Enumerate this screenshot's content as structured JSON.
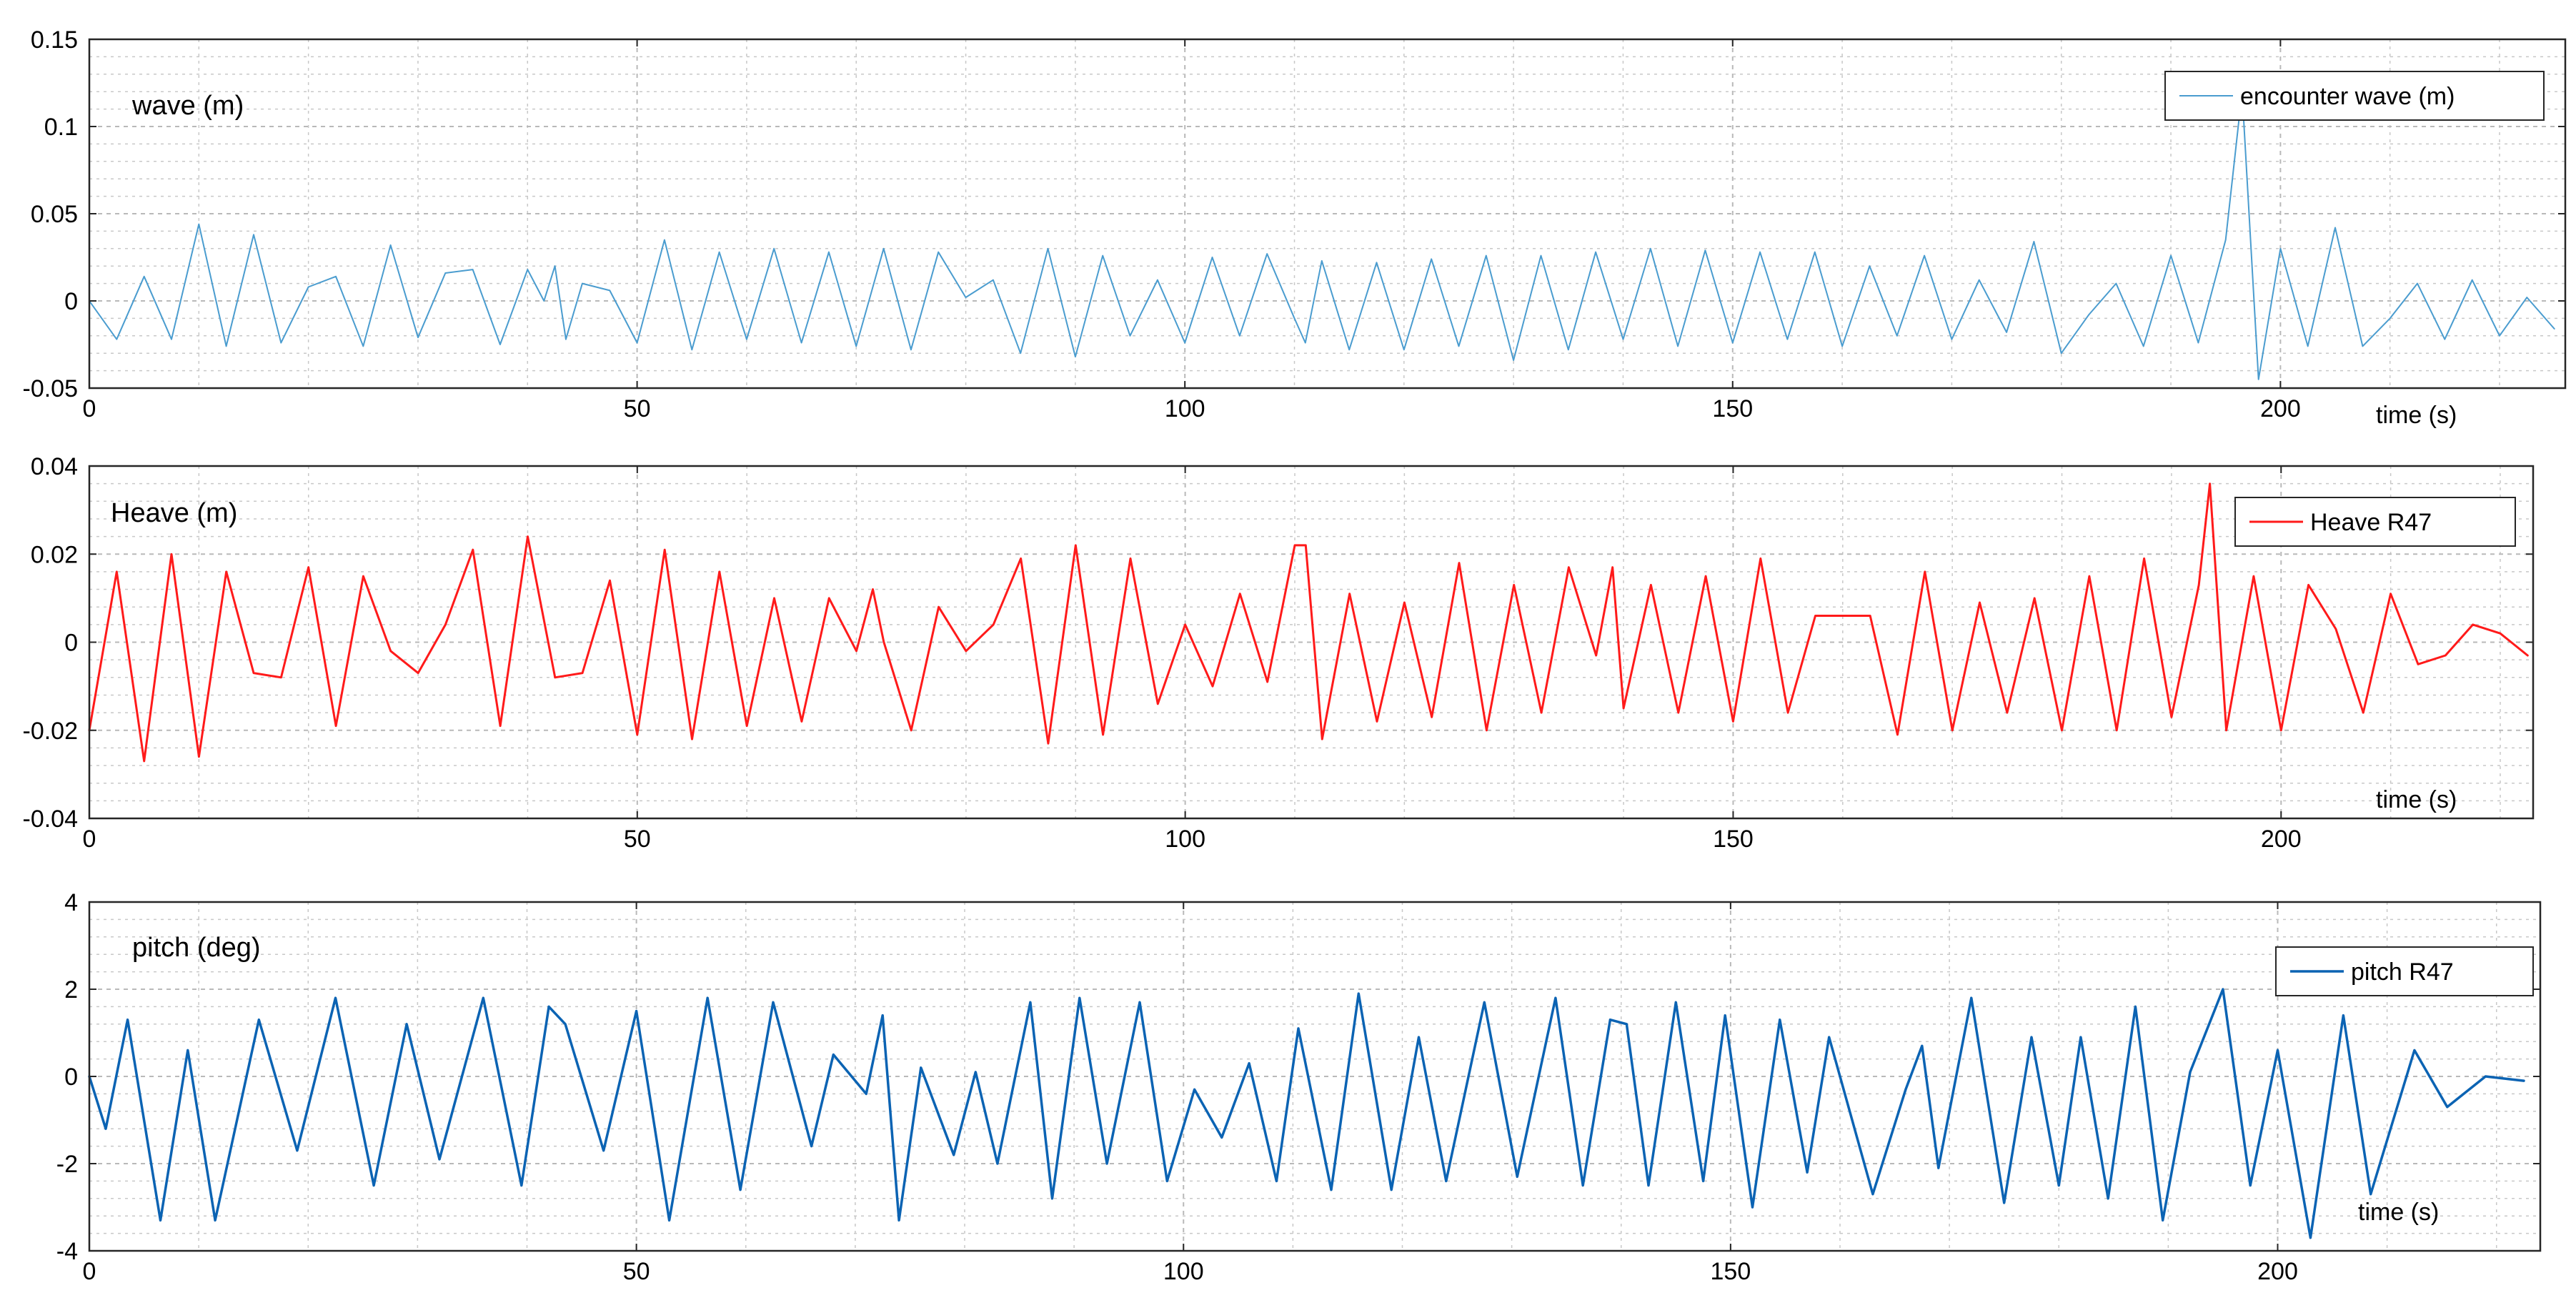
{
  "chart_data": [
    {
      "type": "line",
      "title": "wave (m)",
      "xlabel": "time (s)",
      "ylabel": "",
      "xlim": [
        0,
        226
      ],
      "ylim": [
        -0.05,
        0.15
      ],
      "xticks": [
        0,
        50,
        100,
        150,
        200
      ],
      "xtick_labels": [
        "0",
        "50",
        "100",
        "150",
        "200"
      ],
      "yticks": [
        -0.05,
        0,
        0.05,
        0.1,
        0.15
      ],
      "ytick_labels": [
        "-0.05",
        "0",
        "0.05",
        "0.1",
        "0.15"
      ],
      "grid": true,
      "minor_grid": true,
      "legend_position": "top-right",
      "series": [
        {
          "name": "encounter wave (m)",
          "color": "#4a9ccf",
          "line_width": 2,
          "x": [
            0,
            2.5,
            5,
            7.5,
            10,
            12.5,
            15,
            17.5,
            20,
            22.5,
            25,
            27.5,
            30,
            32.5,
            35,
            37.5,
            40,
            41.5,
            42.5,
            43.5,
            45,
            47.5,
            50,
            52.5,
            55,
            57.5,
            60,
            62.5,
            65,
            67.5,
            70,
            72.5,
            75,
            77.5,
            80,
            82.5,
            85,
            87.5,
            90,
            92.5,
            95,
            97.5,
            100,
            102.5,
            105,
            107.5,
            110,
            111,
            112.5,
            115,
            117.5,
            120,
            122.5,
            125,
            127.5,
            130,
            132.5,
            135,
            137.5,
            140,
            142.5,
            145,
            147.5,
            150,
            152.5,
            155,
            157.5,
            160,
            162.5,
            165,
            167.5,
            170,
            172.5,
            175,
            177.5,
            180,
            182.5,
            185,
            187.5,
            190,
            192.5,
            195,
            196.5,
            198,
            200,
            202.5,
            205,
            207.5,
            210,
            212.5,
            215,
            217.5,
            220,
            222.5,
            225
          ],
          "y": [
            0.0,
            -0.022,
            0.014,
            -0.022,
            0.044,
            -0.026,
            0.038,
            -0.024,
            0.008,
            0.014,
            -0.026,
            0.032,
            -0.021,
            0.016,
            0.018,
            -0.025,
            0.018,
            0.0,
            0.02,
            -0.022,
            0.01,
            0.006,
            -0.024,
            0.035,
            -0.028,
            0.028,
            -0.022,
            0.03,
            -0.024,
            0.028,
            -0.026,
            0.03,
            -0.028,
            0.028,
            0.002,
            0.012,
            -0.03,
            0.03,
            -0.032,
            0.026,
            -0.02,
            0.012,
            -0.024,
            0.025,
            -0.02,
            0.027,
            -0.01,
            -0.024,
            0.023,
            -0.028,
            0.022,
            -0.028,
            0.024,
            -0.026,
            0.026,
            -0.034,
            0.026,
            -0.028,
            0.028,
            -0.022,
            0.03,
            -0.026,
            0.029,
            -0.024,
            0.028,
            -0.022,
            0.028,
            -0.026,
            0.02,
            -0.02,
            0.026,
            -0.022,
            0.012,
            -0.018,
            0.034,
            -0.03,
            -0.008,
            0.01,
            -0.026,
            0.026,
            -0.024,
            0.035,
            0.12,
            -0.045,
            0.03,
            -0.026,
            0.042,
            -0.026,
            -0.01,
            0.01,
            -0.022,
            0.012,
            -0.02,
            0.002,
            -0.016
          ]
        }
      ]
    },
    {
      "type": "line",
      "title": "Heave (m)",
      "xlabel": "time (s)",
      "ylabel": "",
      "xlim": [
        0,
        223
      ],
      "ylim": [
        -0.04,
        0.04
      ],
      "xticks": [
        0,
        50,
        100,
        150,
        200
      ],
      "xtick_labels": [
        "0",
        "50",
        "100",
        "150",
        "200"
      ],
      "yticks": [
        -0.04,
        -0.02,
        0,
        0.02,
        0.04
      ],
      "ytick_labels": [
        "-0.04",
        "-0.02",
        "0",
        "0.02",
        "0.04"
      ],
      "grid": true,
      "minor_grid": true,
      "legend_position": "top-right",
      "series": [
        {
          "name": "Heave R47",
          "color": "#ff1a1a",
          "line_width": 3,
          "x": [
            0,
            2.5,
            5,
            7.5,
            10,
            12.5,
            15,
            17.5,
            20,
            22.5,
            25,
            27.5,
            30,
            32.5,
            35,
            37.5,
            40,
            42.5,
            45,
            47.5,
            50,
            52.5,
            55,
            57.5,
            60,
            62.5,
            65,
            67.5,
            70,
            71.5,
            72.5,
            75,
            77.5,
            80,
            82.5,
            85,
            87.5,
            90,
            92.5,
            95,
            97.5,
            100,
            102.5,
            105,
            107.5,
            110,
            111,
            112.5,
            115,
            117.5,
            120,
            122.5,
            125,
            127.5,
            130,
            132.5,
            135,
            137.5,
            139,
            140,
            142.5,
            145,
            147.5,
            150,
            152.5,
            155,
            157.5,
            160,
            162.5,
            165,
            167.5,
            170,
            172.5,
            175,
            177.5,
            180,
            182.5,
            185,
            187.5,
            190,
            192.5,
            193.5,
            195,
            197.5,
            200,
            202.5,
            205,
            207.5,
            210,
            212.5,
            215,
            217.5,
            220,
            222.5
          ],
          "y": [
            -0.02,
            0.016,
            -0.027,
            0.02,
            -0.026,
            0.016,
            -0.007,
            -0.008,
            0.017,
            -0.019,
            0.015,
            -0.002,
            -0.007,
            0.004,
            0.021,
            -0.019,
            0.024,
            -0.008,
            -0.007,
            0.014,
            -0.021,
            0.021,
            -0.022,
            0.016,
            -0.019,
            0.01,
            -0.018,
            0.01,
            -0.002,
            0.012,
            0.0,
            -0.02,
            0.008,
            -0.002,
            0.004,
            0.019,
            -0.023,
            0.022,
            -0.021,
            0.019,
            -0.014,
            0.004,
            -0.01,
            0.011,
            -0.009,
            0.022,
            0.022,
            -0.022,
            0.011,
            -0.018,
            0.009,
            -0.017,
            0.018,
            -0.02,
            0.013,
            -0.016,
            0.017,
            -0.003,
            0.017,
            -0.015,
            0.013,
            -0.016,
            0.015,
            -0.018,
            0.019,
            -0.016,
            0.006,
            0.006,
            0.006,
            -0.021,
            0.016,
            -0.02,
            0.009,
            -0.016,
            0.01,
            -0.02,
            0.015,
            -0.02,
            0.019,
            -0.017,
            0.013,
            0.036,
            -0.02,
            0.015,
            -0.02,
            0.013,
            0.003,
            -0.016,
            0.011,
            -0.005,
            -0.003,
            0.004,
            0.002,
            -0.003
          ]
        }
      ]
    },
    {
      "type": "line",
      "title": "pitch (deg)",
      "xlabel": "time (s)",
      "ylabel": "",
      "xlim": [
        0,
        224
      ],
      "ylim": [
        -4,
        4
      ],
      "xticks": [
        0,
        50,
        100,
        150,
        200
      ],
      "xtick_labels": [
        "0",
        "50",
        "100",
        "150",
        "200"
      ],
      "yticks": [
        -4,
        -2,
        0,
        2,
        4
      ],
      "ytick_labels": [
        "-4",
        "-2",
        "0",
        "2",
        "4"
      ],
      "grid": true,
      "minor_grid": true,
      "legend_position": "top-right",
      "series": [
        {
          "name": "pitch R47",
          "color": "#0b63b3",
          "line_width": 3.5,
          "x": [
            0,
            1.5,
            3.5,
            6.5,
            9,
            11.5,
            15.5,
            19,
            22.5,
            26,
            29,
            32,
            36,
            39.5,
            42,
            43.5,
            47,
            50,
            53,
            56.5,
            59.5,
            62.5,
            66,
            68,
            71,
            72.5,
            74,
            76,
            79,
            81,
            83,
            86,
            88,
            90.5,
            93,
            96,
            98.5,
            101,
            103.5,
            106,
            108.5,
            110.5,
            113.5,
            116,
            119,
            121.5,
            124,
            127.5,
            130.5,
            134,
            136.5,
            139,
            140.5,
            142.5,
            145,
            147.5,
            149.5,
            152,
            154.5,
            157,
            159,
            163,
            166,
            167.5,
            169,
            172,
            175,
            177.5,
            180,
            182,
            184.5,
            187,
            189.5,
            192,
            195,
            197.5,
            200,
            203,
            206,
            208.5,
            212.5,
            215.5,
            219,
            222.5
          ],
          "y": [
            0,
            -1.2,
            1.3,
            -3.3,
            0.6,
            -3.3,
            1.3,
            -1.7,
            1.8,
            -2.5,
            1.2,
            -1.9,
            1.8,
            -2.5,
            1.6,
            1.2,
            -1.7,
            1.5,
            -3.3,
            1.8,
            -2.6,
            1.7,
            -1.6,
            0.5,
            -0.4,
            1.4,
            -3.3,
            0.2,
            -1.8,
            0.1,
            -2.0,
            1.7,
            -2.8,
            1.8,
            -2.0,
            1.7,
            -2.4,
            -0.3,
            -1.4,
            0.3,
            -2.4,
            1.1,
            -2.6,
            1.9,
            -2.6,
            0.9,
            -2.4,
            1.7,
            -2.3,
            1.8,
            -2.5,
            1.3,
            1.2,
            -2.5,
            1.7,
            -2.4,
            1.4,
            -3.0,
            1.3,
            -2.2,
            0.9,
            -2.7,
            -0.3,
            0.7,
            -2.1,
            1.8,
            -2.9,
            0.9,
            -2.5,
            0.9,
            -2.8,
            1.6,
            -3.3,
            0.1,
            2.0,
            -2.5,
            0.6,
            -3.7,
            1.4,
            -2.7,
            0.6,
            -0.7,
            0.0,
            -0.1
          ]
        }
      ]
    }
  ]
}
